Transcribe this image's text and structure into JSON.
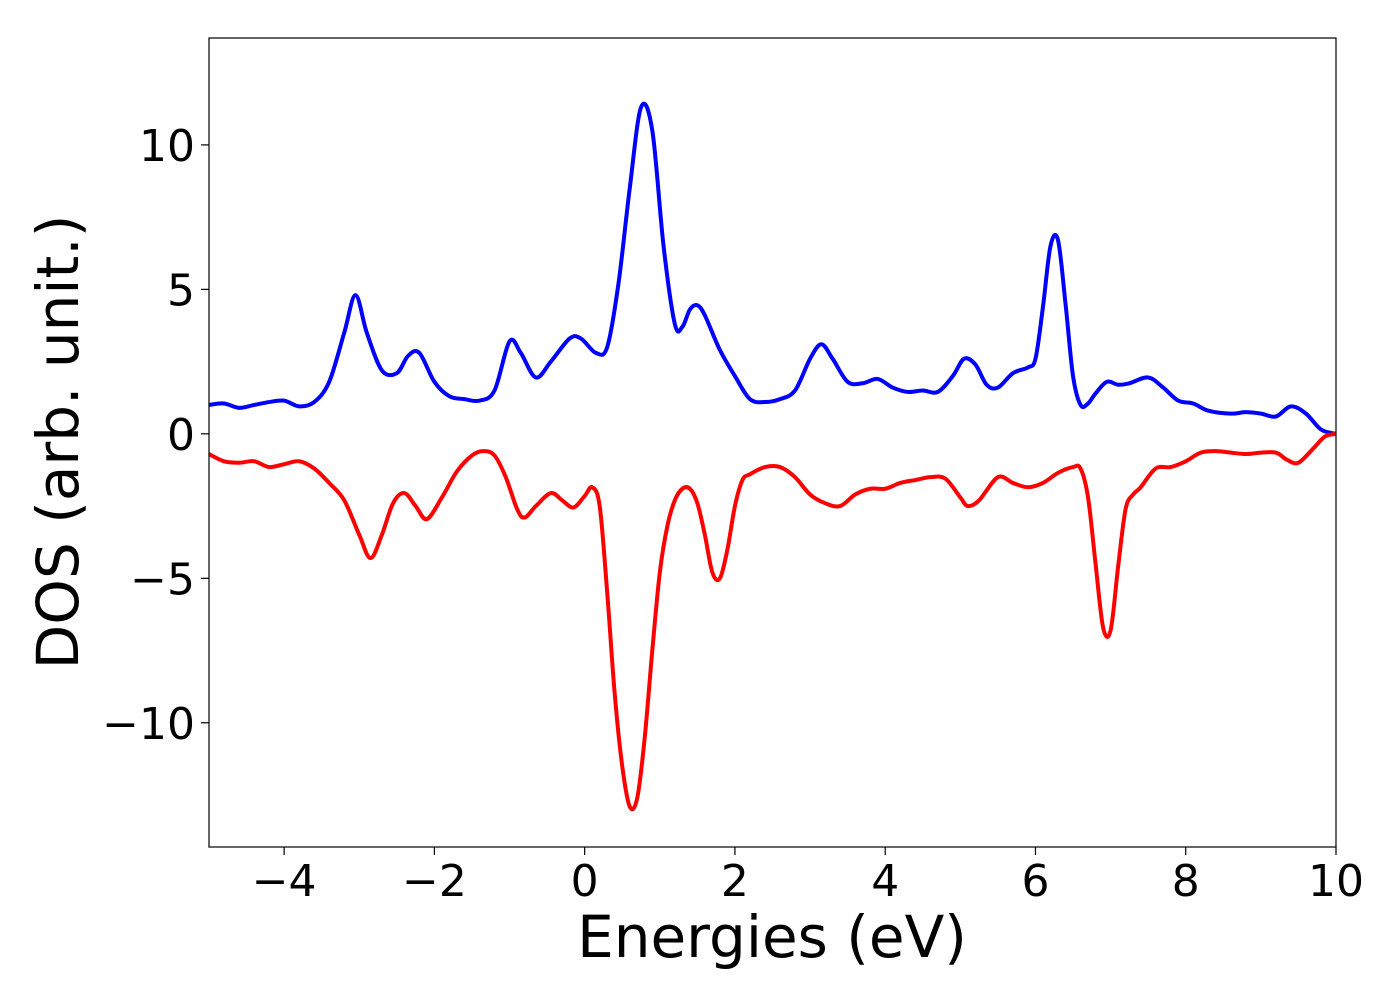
{
  "chart_data": {
    "type": "line",
    "title": "",
    "xlabel": "Energies (eV)",
    "ylabel": "DOS (arb. unit.)",
    "xlim": [
      -5,
      10
    ],
    "ylim": [
      -14.3,
      13.7
    ],
    "grid": false,
    "legend": "none",
    "xticks": [
      {
        "value": -4,
        "label": "−4"
      },
      {
        "value": -2,
        "label": "−2"
      },
      {
        "value": 0,
        "label": "0"
      },
      {
        "value": 2,
        "label": "2"
      },
      {
        "value": 4,
        "label": "4"
      },
      {
        "value": 6,
        "label": "6"
      },
      {
        "value": 8,
        "label": "8"
      },
      {
        "value": 10,
        "label": "10"
      }
    ],
    "yticks": [
      {
        "value": -10,
        "label": "−10"
      },
      {
        "value": -5,
        "label": "−5"
      },
      {
        "value": 0,
        "label": "0"
      },
      {
        "value": 5,
        "label": "5"
      },
      {
        "value": 10,
        "label": "10"
      }
    ],
    "series": [
      {
        "color": "#0000ff",
        "x": [
          -5,
          -4.8,
          -4.6,
          -4.4,
          -4.2,
          -4.0,
          -3.8,
          -3.6,
          -3.4,
          -3.2,
          -3.05,
          -2.9,
          -2.7,
          -2.5,
          -2.35,
          -2.2,
          -2.0,
          -1.8,
          -1.6,
          -1.4,
          -1.2,
          -1.0,
          -0.85,
          -0.65,
          -0.45,
          -0.2,
          -0.05,
          0.15,
          0.3,
          0.45,
          0.6,
          0.75,
          0.9,
          1.05,
          1.2,
          1.3,
          1.4,
          1.5,
          1.6,
          1.8,
          2.0,
          2.2,
          2.4,
          2.6,
          2.8,
          3.0,
          3.15,
          3.3,
          3.5,
          3.7,
          3.9,
          4.1,
          4.3,
          4.5,
          4.7,
          4.9,
          5.05,
          5.2,
          5.35,
          5.5,
          5.7,
          5.9,
          6.0,
          6.1,
          6.2,
          6.3,
          6.4,
          6.5,
          6.6,
          6.7,
          6.8,
          6.95,
          7.1,
          7.25,
          7.5,
          7.7,
          7.9,
          8.1,
          8.3,
          8.6,
          8.8,
          9.0,
          9.2,
          9.4,
          9.6,
          9.8,
          10.0
        ],
        "y": [
          1.0,
          1.05,
          0.9,
          1.0,
          1.1,
          1.15,
          0.95,
          1.1,
          1.8,
          3.5,
          4.8,
          3.5,
          2.2,
          2.1,
          2.7,
          2.8,
          1.8,
          1.3,
          1.2,
          1.15,
          1.5,
          3.2,
          2.8,
          1.95,
          2.5,
          3.3,
          3.3,
          2.8,
          3.0,
          5.2,
          8.5,
          11.3,
          10.5,
          6.5,
          3.8,
          3.7,
          4.3,
          4.45,
          4.1,
          2.9,
          2.0,
          1.2,
          1.1,
          1.2,
          1.5,
          2.6,
          3.1,
          2.6,
          1.8,
          1.75,
          1.9,
          1.6,
          1.45,
          1.5,
          1.45,
          2.0,
          2.6,
          2.4,
          1.7,
          1.6,
          2.1,
          2.3,
          2.6,
          4.4,
          6.5,
          6.7,
          4.5,
          2.0,
          1.0,
          1.05,
          1.4,
          1.8,
          1.7,
          1.75,
          1.95,
          1.6,
          1.15,
          1.05,
          0.8,
          0.7,
          0.75,
          0.7,
          0.6,
          0.95,
          0.7,
          0.15,
          0.0
        ]
      },
      {
        "color": "#ff0000",
        "x": [
          -5,
          -4.8,
          -4.6,
          -4.4,
          -4.2,
          -4.0,
          -3.8,
          -3.6,
          -3.4,
          -3.2,
          -3.0,
          -2.85,
          -2.7,
          -2.55,
          -2.4,
          -2.25,
          -2.1,
          -1.9,
          -1.7,
          -1.5,
          -1.35,
          -1.2,
          -1.05,
          -0.9,
          -0.8,
          -0.65,
          -0.45,
          -0.3,
          -0.15,
          0.0,
          0.1,
          0.2,
          0.3,
          0.4,
          0.5,
          0.6,
          0.7,
          0.8,
          0.9,
          1.0,
          1.1,
          1.2,
          1.3,
          1.4,
          1.5,
          1.6,
          1.7,
          1.8,
          1.9,
          2.0,
          2.1,
          2.2,
          2.4,
          2.6,
          2.8,
          3.0,
          3.2,
          3.4,
          3.6,
          3.8,
          4.0,
          4.2,
          4.4,
          4.6,
          4.8,
          5.0,
          5.1,
          5.25,
          5.5,
          5.7,
          5.9,
          6.1,
          6.3,
          6.5,
          6.6,
          6.7,
          6.8,
          6.9,
          7.0,
          7.1,
          7.2,
          7.3,
          7.4,
          7.6,
          7.8,
          8.0,
          8.2,
          8.4,
          8.6,
          8.8,
          9.0,
          9.2,
          9.35,
          9.5,
          9.7,
          9.85,
          10.0
        ],
        "y": [
          -0.7,
          -0.95,
          -1.0,
          -0.95,
          -1.15,
          -1.05,
          -0.95,
          -1.2,
          -1.7,
          -2.3,
          -3.5,
          -4.3,
          -3.5,
          -2.4,
          -2.05,
          -2.5,
          -2.95,
          -2.2,
          -1.3,
          -0.75,
          -0.6,
          -0.75,
          -1.5,
          -2.6,
          -2.9,
          -2.5,
          -2.05,
          -2.3,
          -2.55,
          -2.15,
          -1.85,
          -2.5,
          -5.5,
          -9.0,
          -11.5,
          -12.9,
          -12.6,
          -10.5,
          -7.5,
          -4.8,
          -3.2,
          -2.3,
          -1.9,
          -1.9,
          -2.4,
          -3.5,
          -4.8,
          -5.0,
          -4.0,
          -2.5,
          -1.6,
          -1.4,
          -1.15,
          -1.15,
          -1.5,
          -2.1,
          -2.4,
          -2.5,
          -2.1,
          -1.9,
          -1.9,
          -1.7,
          -1.6,
          -1.5,
          -1.55,
          -2.2,
          -2.5,
          -2.3,
          -1.5,
          -1.7,
          -1.85,
          -1.7,
          -1.35,
          -1.15,
          -1.2,
          -2.2,
          -4.5,
          -6.7,
          -6.8,
          -4.6,
          -2.6,
          -2.1,
          -1.85,
          -1.2,
          -1.15,
          -0.95,
          -0.65,
          -0.6,
          -0.65,
          -0.7,
          -0.65,
          -0.65,
          -0.9,
          -1.0,
          -0.5,
          -0.1,
          0.0
        ]
      }
    ]
  }
}
